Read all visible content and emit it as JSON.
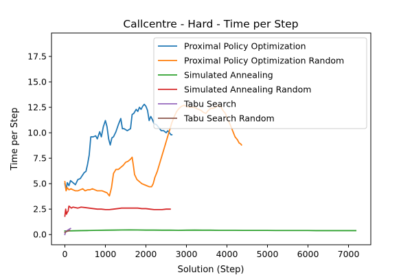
{
  "chart_data": {
    "type": "line",
    "title": "Callcentre - Hard - Time per Step",
    "xlabel": "Solution (Step)",
    "ylabel": "Time per Step",
    "xlim": [
      -330,
      7550
    ],
    "ylim": [
      -1.0,
      19.8
    ],
    "xticks": [
      0,
      1000,
      2000,
      3000,
      4000,
      5000,
      6000,
      7000
    ],
    "yticks": [
      0.0,
      2.5,
      5.0,
      7.5,
      10.0,
      12.5,
      15.0,
      17.5
    ],
    "xtick_labels": [
      "0",
      "1000",
      "2000",
      "3000",
      "4000",
      "5000",
      "6000",
      "7000"
    ],
    "ytick_labels": [
      "0.0",
      "2.5",
      "5.0",
      "7.5",
      "10.0",
      "12.5",
      "15.0",
      "17.5"
    ],
    "grid": false,
    "legend_position": "top-right",
    "series": [
      {
        "name": "Proximal Policy Optimization",
        "color": "#1f77b4",
        "points": [
          [
            0,
            5.0
          ],
          [
            30,
            4.4
          ],
          [
            60,
            5.1
          ],
          [
            100,
            4.8
          ],
          [
            140,
            5.3
          ],
          [
            200,
            5.1
          ],
          [
            260,
            4.9
          ],
          [
            320,
            5.4
          ],
          [
            380,
            5.5
          ],
          [
            430,
            5.8
          ],
          [
            480,
            6.1
          ],
          [
            520,
            6.2
          ],
          [
            560,
            6.9
          ],
          [
            600,
            7.8
          ],
          [
            640,
            9.6
          ],
          [
            700,
            9.6
          ],
          [
            760,
            9.7
          ],
          [
            800,
            9.4
          ],
          [
            860,
            10.1
          ],
          [
            900,
            9.6
          ],
          [
            950,
            10.6
          ],
          [
            1000,
            11.2
          ],
          [
            1040,
            10.6
          ],
          [
            1080,
            9.4
          ],
          [
            1120,
            8.8
          ],
          [
            1160,
            9.5
          ],
          [
            1200,
            9.6
          ],
          [
            1260,
            10.1
          ],
          [
            1320,
            10.8
          ],
          [
            1380,
            11.4
          ],
          [
            1420,
            10.4
          ],
          [
            1460,
            10.4
          ],
          [
            1500,
            10.3
          ],
          [
            1540,
            10.2
          ],
          [
            1580,
            10.3
          ],
          [
            1620,
            10.4
          ],
          [
            1660,
            11.8
          ],
          [
            1700,
            11.9
          ],
          [
            1760,
            12.3
          ],
          [
            1800,
            12.1
          ],
          [
            1840,
            12.5
          ],
          [
            1880,
            12.3
          ],
          [
            1920,
            12.6
          ],
          [
            1960,
            12.8
          ],
          [
            2000,
            12.6
          ],
          [
            2040,
            12.2
          ],
          [
            2080,
            11.2
          ],
          [
            2120,
            11.6
          ],
          [
            2160,
            11.3
          ],
          [
            2200,
            10.9
          ],
          [
            2260,
            10.8
          ],
          [
            2320,
            10.5
          ],
          [
            2380,
            10.2
          ],
          [
            2440,
            10.2
          ],
          [
            2500,
            10.0
          ],
          [
            2540,
            10.2
          ],
          [
            2580,
            10.0
          ],
          [
            2620,
            9.8
          ],
          [
            2640,
            9.8
          ]
        ]
      },
      {
        "name": "Proximal Policy Optimization Random",
        "color": "#ff7f0e",
        "points": [
          [
            0,
            5.2
          ],
          [
            30,
            4.3
          ],
          [
            60,
            4.6
          ],
          [
            100,
            4.4
          ],
          [
            150,
            4.5
          ],
          [
            200,
            4.4
          ],
          [
            260,
            4.3
          ],
          [
            320,
            4.3
          ],
          [
            380,
            4.4
          ],
          [
            440,
            4.5
          ],
          [
            500,
            4.3
          ],
          [
            560,
            4.4
          ],
          [
            620,
            4.4
          ],
          [
            680,
            4.5
          ],
          [
            740,
            4.4
          ],
          [
            800,
            4.3
          ],
          [
            860,
            4.3
          ],
          [
            920,
            4.3
          ],
          [
            980,
            4.2
          ],
          [
            1040,
            4.1
          ],
          [
            1080,
            3.9
          ],
          [
            1100,
            3.8
          ],
          [
            1150,
            4.6
          ],
          [
            1200,
            6.0
          ],
          [
            1260,
            6.4
          ],
          [
            1320,
            6.4
          ],
          [
            1380,
            6.6
          ],
          [
            1440,
            6.8
          ],
          [
            1500,
            7.1
          ],
          [
            1560,
            7.2
          ],
          [
            1620,
            7.4
          ],
          [
            1660,
            7.6
          ],
          [
            1690,
            6.8
          ],
          [
            1720,
            5.9
          ],
          [
            1780,
            5.4
          ],
          [
            1840,
            5.2
          ],
          [
            1900,
            5.0
          ],
          [
            1960,
            4.9
          ],
          [
            2020,
            4.8
          ],
          [
            2080,
            4.7
          ],
          [
            2140,
            4.7
          ],
          [
            2180,
            5.0
          ],
          [
            2220,
            5.6
          ],
          [
            2280,
            6.2
          ],
          [
            2340,
            7.0
          ],
          [
            2400,
            7.8
          ],
          [
            2460,
            8.6
          ],
          [
            2520,
            9.4
          ],
          [
            2580,
            10.2
          ],
          [
            2640,
            11.0
          ],
          [
            2700,
            11.6
          ],
          [
            2760,
            12.1
          ],
          [
            2820,
            12.4
          ],
          [
            2880,
            12.6
          ],
          [
            2940,
            12.7
          ],
          [
            3000,
            12.6
          ],
          [
            3060,
            12.5
          ],
          [
            3120,
            12.5
          ],
          [
            3180,
            12.5
          ],
          [
            3240,
            12.4
          ],
          [
            3300,
            12.3
          ],
          [
            3360,
            12.2
          ],
          [
            3420,
            12.0
          ],
          [
            3480,
            11.9
          ],
          [
            3540,
            12.2
          ],
          [
            3600,
            12.4
          ],
          [
            3660,
            12.4
          ],
          [
            3720,
            12.5
          ],
          [
            3780,
            12.7
          ],
          [
            3840,
            12.6
          ],
          [
            3900,
            12.2
          ],
          [
            3960,
            11.9
          ],
          [
            4020,
            11.3
          ],
          [
            4080,
            10.8
          ],
          [
            4140,
            10.2
          ],
          [
            4200,
            9.6
          ],
          [
            4260,
            9.3
          ],
          [
            4300,
            9.0
          ],
          [
            4340,
            8.9
          ],
          [
            4360,
            8.8
          ]
        ]
      },
      {
        "name": "Simulated Annealing",
        "color": "#2ca02c",
        "points": [
          [
            0,
            0.35
          ],
          [
            200,
            0.37
          ],
          [
            400,
            0.39
          ],
          [
            600,
            0.4
          ],
          [
            800,
            0.42
          ],
          [
            1000,
            0.43
          ],
          [
            1200,
            0.44
          ],
          [
            1400,
            0.45
          ],
          [
            1600,
            0.46
          ],
          [
            1800,
            0.45
          ],
          [
            2000,
            0.44
          ],
          [
            2200,
            0.44
          ],
          [
            2400,
            0.43
          ],
          [
            2600,
            0.43
          ],
          [
            2800,
            0.42
          ],
          [
            3000,
            0.43
          ],
          [
            3200,
            0.44
          ],
          [
            3400,
            0.43
          ],
          [
            3600,
            0.43
          ],
          [
            3800,
            0.42
          ],
          [
            4000,
            0.42
          ],
          [
            4200,
            0.42
          ],
          [
            4400,
            0.41
          ],
          [
            4600,
            0.41
          ],
          [
            4800,
            0.41
          ],
          [
            5000,
            0.41
          ],
          [
            5200,
            0.4
          ],
          [
            5400,
            0.4
          ],
          [
            5600,
            0.4
          ],
          [
            5800,
            0.4
          ],
          [
            6000,
            0.4
          ],
          [
            6200,
            0.39
          ],
          [
            6400,
            0.39
          ],
          [
            6600,
            0.39
          ],
          [
            6800,
            0.39
          ],
          [
            7000,
            0.39
          ],
          [
            7180,
            0.39
          ]
        ]
      },
      {
        "name": "Simulated Annealing Random",
        "color": "#d62728",
        "points": [
          [
            0,
            1.8
          ],
          [
            20,
            2.5
          ],
          [
            40,
            2.0
          ],
          [
            60,
            2.2
          ],
          [
            80,
            2.3
          ],
          [
            100,
            2.8
          ],
          [
            130,
            2.7
          ],
          [
            160,
            2.6
          ],
          [
            200,
            2.7
          ],
          [
            260,
            2.65
          ],
          [
            320,
            2.6
          ],
          [
            400,
            2.7
          ],
          [
            500,
            2.65
          ],
          [
            600,
            2.6
          ],
          [
            700,
            2.55
          ],
          [
            800,
            2.5
          ],
          [
            900,
            2.5
          ],
          [
            1000,
            2.45
          ],
          [
            1100,
            2.45
          ],
          [
            1200,
            2.5
          ],
          [
            1300,
            2.55
          ],
          [
            1400,
            2.6
          ],
          [
            1500,
            2.6
          ],
          [
            1600,
            2.6
          ],
          [
            1700,
            2.6
          ],
          [
            1800,
            2.6
          ],
          [
            1900,
            2.55
          ],
          [
            2000,
            2.55
          ],
          [
            2100,
            2.5
          ],
          [
            2200,
            2.45
          ],
          [
            2300,
            2.45
          ],
          [
            2400,
            2.45
          ],
          [
            2500,
            2.5
          ],
          [
            2600,
            2.5
          ]
        ]
      },
      {
        "name": "Tabu Search",
        "color": "#9467bd",
        "points": [
          [
            0,
            0.0
          ],
          [
            20,
            0.3
          ],
          [
            40,
            0.35
          ],
          [
            60,
            0.4
          ],
          [
            80,
            0.45
          ],
          [
            100,
            0.5
          ],
          [
            120,
            0.55
          ],
          [
            140,
            0.6
          ]
        ]
      },
      {
        "name": "Tabu Search Random",
        "color": "#8c564b",
        "points": [
          [
            0,
            0.2
          ],
          [
            40,
            0.3
          ],
          [
            80,
            0.35
          ],
          [
            120,
            0.4
          ]
        ]
      }
    ]
  }
}
